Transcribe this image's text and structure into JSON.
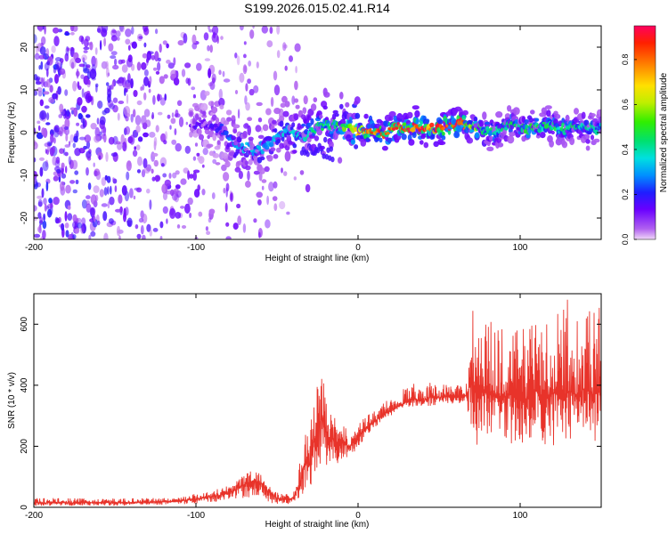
{
  "figure": {
    "title": "S199.2026.015.02.41.R14"
  },
  "chart_data": [
    {
      "type": "heatmap",
      "title": "S199.2026.015.02.41.R14",
      "xlabel": "Height of straight line (km)",
      "ylabel": "Frequency (Hz)",
      "xlim": [
        -200,
        150
      ],
      "ylim": [
        -25,
        25
      ],
      "x_ticks": [
        -200,
        -100,
        0,
        100
      ],
      "x_tick_labels": [
        "-200",
        "-100",
        "0",
        "100"
      ],
      "y_ticks": [
        -20,
        -10,
        0,
        10,
        20
      ],
      "y_tick_labels": [
        "-20",
        "-10",
        "0",
        "10",
        "20"
      ],
      "grid": false,
      "colorbar": {
        "label": "Normalized spectral amplitude",
        "range": [
          0.0,
          0.95
        ],
        "ticks": [
          0.0,
          0.2,
          0.4,
          0.6,
          0.8
        ],
        "tick_labels": [
          "0.0",
          "0.2",
          "0.4",
          "0.6",
          "0.8"
        ],
        "colormap": "rainbow (violet to red)"
      },
      "ridge": {
        "description": "Dominant frequency ridge (amplitude peak) versus height",
        "x": [
          -95,
          -85,
          -75,
          -65,
          -55,
          -45,
          -35,
          -25,
          -15,
          -5,
          5,
          15,
          25,
          35,
          45,
          55,
          65,
          75,
          85,
          95,
          105,
          115,
          125,
          135,
          145
        ],
        "freq": [
          2,
          1,
          -3,
          -4,
          -3,
          1,
          -1,
          1,
          2,
          1,
          0,
          0,
          1,
          1,
          1,
          2,
          2,
          1,
          0,
          2,
          1,
          2,
          1,
          1,
          1
        ],
        "amplitude": [
          0.15,
          0.2,
          0.3,
          0.35,
          0.3,
          0.35,
          0.4,
          0.45,
          0.5,
          0.55,
          0.85,
          0.85,
          0.9,
          0.9,
          0.85,
          0.9,
          0.9,
          0.5,
          0.45,
          0.45,
          0.5,
          0.45,
          0.45,
          0.45,
          0.4
        ]
      },
      "noise_region": {
        "description": "Broadband low-amplitude noise filling the frequency range",
        "x_range": [
          -200,
          -45
        ]
      }
    },
    {
      "type": "line",
      "title": "",
      "xlabel": "Height of straight line (km)",
      "ylabel": "SNR (10 * v/v)",
      "xlim": [
        -200,
        150
      ],
      "ylim": [
        0,
        700
      ],
      "x_ticks": [
        -200,
        -100,
        0,
        100
      ],
      "x_tick_labels": [
        "-200",
        "-100",
        "0",
        "100"
      ],
      "y_ticks": [
        0,
        200,
        400,
        600
      ],
      "y_tick_labels": [
        "0",
        "200",
        "400",
        "600"
      ],
      "grid": false,
      "series": [
        {
          "name": "SNR",
          "color": "#e8332a",
          "x": [
            -200,
            -180,
            -160,
            -140,
            -120,
            -110,
            -100,
            -90,
            -80,
            -75,
            -70,
            -65,
            -60,
            -55,
            -50,
            -45,
            -40,
            -35,
            -33,
            -30,
            -28,
            -25,
            -22,
            -20,
            -18,
            -15,
            -12,
            -10,
            -5,
            0,
            5,
            10,
            15,
            20,
            25,
            30,
            35,
            40,
            45,
            50,
            55,
            60,
            65,
            67,
            70,
            75,
            80,
            85,
            90,
            95,
            100,
            105,
            110,
            115,
            120,
            125,
            130,
            135,
            140,
            145,
            150
          ],
          "values": [
            15,
            15,
            15,
            15,
            18,
            20,
            28,
            35,
            45,
            60,
            75,
            85,
            80,
            50,
            30,
            25,
            30,
            90,
            150,
            140,
            200,
            260,
            300,
            250,
            230,
            220,
            200,
            210,
            200,
            230,
            260,
            280,
            300,
            320,
            330,
            345,
            355,
            350,
            360,
            360,
            365,
            360,
            360,
            370,
            410,
            380,
            380,
            370,
            360,
            380,
            350,
            360,
            380,
            350,
            380,
            360,
            380,
            370,
            390,
            370,
            380
          ],
          "envelope_low": [
            5,
            5,
            5,
            5,
            8,
            10,
            12,
            15,
            20,
            25,
            30,
            35,
            30,
            15,
            10,
            10,
            10,
            30,
            60,
            60,
            80,
            120,
            150,
            140,
            130,
            140,
            140,
            150,
            160,
            200,
            230,
            260,
            280,
            300,
            310,
            320,
            330,
            330,
            330,
            340,
            340,
            340,
            340,
            340,
            230,
            170,
            200,
            200,
            210,
            200,
            210,
            200,
            210,
            200,
            200,
            210,
            220,
            210,
            220,
            210,
            230
          ],
          "envelope_high": [
            30,
            30,
            28,
            30,
            30,
            35,
            45,
            55,
            75,
            100,
            115,
            120,
            110,
            70,
            50,
            45,
            55,
            170,
            260,
            250,
            330,
            400,
            460,
            350,
            320,
            300,
            270,
            270,
            250,
            270,
            300,
            320,
            340,
            360,
            380,
            400,
            410,
            400,
            410,
            400,
            410,
            400,
            400,
            420,
            690,
            640,
            620,
            600,
            590,
            600,
            580,
            610,
            690,
            650,
            600,
            660,
            690,
            640,
            700,
            650,
            690
          ]
        }
      ]
    }
  ]
}
